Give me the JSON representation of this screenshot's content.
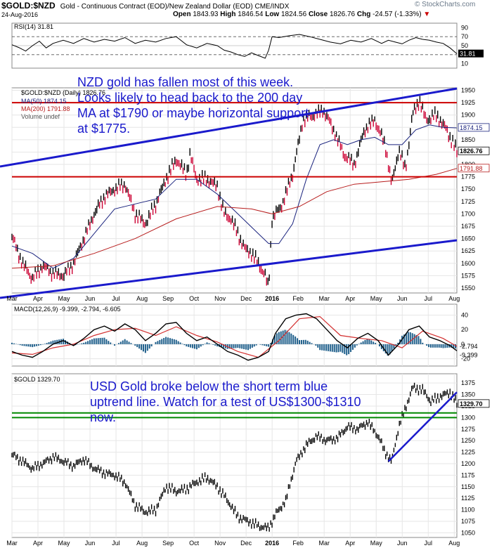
{
  "header": {
    "symbol": "$GOLD:$NZD",
    "description": "Gold - Continuous Contract (EOD)/New Zealand Dollar (EOD) CME/INDX",
    "watermark": "© StockCharts.com",
    "date": "24-Aug-2016",
    "quote": {
      "open_label": "Open",
      "open": "1843.93",
      "high_label": "High",
      "high": "1846.54",
      "low_label": "Low",
      "low": "1824.56",
      "close_label": "Close",
      "close": "1826.76",
      "chg_label": "Chg",
      "chg": "-24.57 (-1.33%)"
    }
  },
  "colors": {
    "annotation": "#1a1acc",
    "price": "#000000",
    "candle_down": "#cc0033",
    "ma50": "#1a237e",
    "ma200": "#b71c1c",
    "macd": "#000000",
    "signal": "#d32f2f",
    "hist": "#1f5f8b",
    "support": "#cc0000",
    "green": "#008800",
    "grid": "#e6e6e6"
  },
  "annotations": {
    "nzd_note": [
      "NZD gold has fallen most of this week.",
      "Looks likely to head back to the 200 day",
      "MA at $1790 or maybe horizontal support",
      "at $1775."
    ],
    "usd_note": [
      "USD Gold broke below the short term blue",
      "uptrend line. Watch for a test of US$1300-$1310",
      "now."
    ]
  },
  "x_axis": {
    "labels": [
      "Mar",
      "Apr",
      "May",
      "Jun",
      "Jul",
      "Aug",
      "Sep",
      "Oct",
      "Nov",
      "Dec",
      "2016",
      "Feb",
      "Mar",
      "Apr",
      "May",
      "Jun",
      "Jul",
      "Aug"
    ]
  },
  "chart_data": [
    {
      "type": "line",
      "name": "rsi_panel",
      "legend": "RSI(14) 31.81",
      "last_label": "31.81",
      "ylim": [
        0,
        100
      ],
      "ticks": [
        10,
        30,
        50,
        70,
        90
      ],
      "levels": [
        30,
        70
      ],
      "points": [
        [
          0,
          52
        ],
        [
          10,
          46
        ],
        [
          20,
          38
        ],
        [
          30,
          50
        ],
        [
          40,
          60
        ],
        [
          50,
          45
        ],
        [
          60,
          55
        ],
        [
          75,
          62
        ],
        [
          90,
          55
        ],
        [
          105,
          66
        ],
        [
          120,
          58
        ],
        [
          135,
          64
        ],
        [
          150,
          60
        ],
        [
          165,
          68
        ],
        [
          180,
          55
        ],
        [
          195,
          62
        ],
        [
          210,
          58
        ],
        [
          225,
          66
        ],
        [
          240,
          70
        ],
        [
          255,
          52
        ],
        [
          270,
          45
        ],
        [
          285,
          55
        ],
        [
          300,
          50
        ],
        [
          310,
          40
        ],
        [
          320,
          36
        ],
        [
          330,
          30
        ],
        [
          340,
          26
        ],
        [
          350,
          34
        ],
        [
          360,
          28
        ],
        [
          370,
          22
        ],
        [
          375,
          40
        ],
        [
          380,
          70
        ],
        [
          390,
          68
        ],
        [
          405,
          72
        ],
        [
          420,
          75
        ],
        [
          435,
          70
        ],
        [
          450,
          64
        ],
        [
          465,
          58
        ],
        [
          480,
          54
        ],
        [
          495,
          62
        ],
        [
          510,
          58
        ],
        [
          525,
          66
        ],
        [
          540,
          55
        ],
        [
          550,
          62
        ],
        [
          560,
          58
        ],
        [
          570,
          54
        ],
        [
          580,
          62
        ],
        [
          590,
          68
        ],
        [
          600,
          64
        ],
        [
          610,
          62
        ],
        [
          620,
          58
        ],
        [
          630,
          55
        ],
        [
          640,
          45
        ],
        [
          650,
          32
        ]
      ]
    },
    {
      "type": "candlestick",
      "name": "nzd_gold_panel",
      "legend": [
        "$GOLD:$NZD (Daily) 1826.76",
        "MA(50) 1874.15",
        "MA(200) 1791.88",
        "Volume undef"
      ],
      "last_labels": [
        "1874.15",
        "1826.76",
        "1791.88"
      ],
      "ylim": [
        1540,
        1955
      ],
      "ticks": [
        1550,
        1575,
        1600,
        1625,
        1650,
        1675,
        1700,
        1725,
        1750,
        1775,
        1800,
        1825,
        1850,
        1875,
        1900,
        1925,
        1950
      ],
      "price_path": [
        [
          0,
          1655
        ],
        [
          15,
          1600
        ],
        [
          30,
          1570
        ],
        [
          45,
          1595
        ],
        [
          60,
          1580
        ],
        [
          75,
          1575
        ],
        [
          90,
          1600
        ],
        [
          105,
          1650
        ],
        [
          120,
          1700
        ],
        [
          135,
          1735
        ],
        [
          150,
          1750
        ],
        [
          165,
          1760
        ],
        [
          180,
          1700
        ],
        [
          195,
          1680
        ],
        [
          210,
          1720
        ],
        [
          225,
          1770
        ],
        [
          240,
          1810
        ],
        [
          255,
          1780
        ],
        [
          260,
          1820
        ],
        [
          270,
          1770
        ],
        [
          285,
          1770
        ],
        [
          300,
          1755
        ],
        [
          310,
          1700
        ],
        [
          320,
          1690
        ],
        [
          330,
          1660
        ],
        [
          340,
          1630
        ],
        [
          350,
          1620
        ],
        [
          360,
          1600
        ],
        [
          370,
          1575
        ],
        [
          375,
          1550
        ],
        [
          380,
          1690
        ],
        [
          395,
          1720
        ],
        [
          410,
          1780
        ],
        [
          425,
          1890
        ],
        [
          440,
          1900
        ],
        [
          455,
          1910
        ],
        [
          470,
          1870
        ],
        [
          485,
          1820
        ],
        [
          500,
          1800
        ],
        [
          515,
          1870
        ],
        [
          530,
          1890
        ],
        [
          545,
          1840
        ],
        [
          555,
          1760
        ],
        [
          565,
          1830
        ],
        [
          575,
          1790
        ],
        [
          585,
          1900
        ],
        [
          595,
          1930
        ],
        [
          605,
          1890
        ],
        [
          620,
          1900
        ],
        [
          635,
          1870
        ],
        [
          650,
          1826
        ]
      ],
      "ma50": [
        [
          0,
          1635
        ],
        [
          30,
          1620
        ],
        [
          60,
          1590
        ],
        [
          90,
          1610
        ],
        [
          120,
          1660
        ],
        [
          150,
          1710
        ],
        [
          180,
          1720
        ],
        [
          210,
          1730
        ],
        [
          240,
          1770
        ],
        [
          270,
          1770
        ],
        [
          300,
          1740
        ],
        [
          330,
          1700
        ],
        [
          360,
          1660
        ],
        [
          375,
          1640
        ],
        [
          390,
          1640
        ],
        [
          410,
          1680
        ],
        [
          430,
          1770
        ],
        [
          450,
          1840
        ],
        [
          470,
          1850
        ],
        [
          490,
          1840
        ],
        [
          510,
          1850
        ],
        [
          530,
          1855
        ],
        [
          550,
          1840
        ],
        [
          570,
          1840
        ],
        [
          590,
          1870
        ],
        [
          610,
          1880
        ],
        [
          630,
          1875
        ],
        [
          650,
          1874
        ]
      ],
      "ma200": [
        [
          0,
          1590
        ],
        [
          60,
          1595
        ],
        [
          120,
          1620
        ],
        [
          180,
          1650
        ],
        [
          240,
          1690
        ],
        [
          300,
          1715
        ],
        [
          350,
          1710
        ],
        [
          380,
          1700
        ],
        [
          420,
          1715
        ],
        [
          460,
          1745
        ],
        [
          500,
          1760
        ],
        [
          540,
          1765
        ],
        [
          580,
          1770
        ],
        [
          620,
          1780
        ],
        [
          650,
          1792
        ]
      ],
      "support_y": 1925,
      "support2_y": 1775,
      "trend_upper": [
        [
          -20,
          1780
        ],
        [
          650,
          1945
        ]
      ],
      "trend_lower": [
        [
          -20,
          1530
        ],
        [
          650,
          1640
        ]
      ]
    },
    {
      "type": "line",
      "name": "macd_panel",
      "legend": "MACD(12,26,9) -9.399, -2.794, -6.605",
      "last_labels": [
        "-2.794",
        "-9.399"
      ],
      "ylim": [
        -30,
        55
      ],
      "ticks": [
        -20,
        0,
        20,
        40
      ],
      "macd": [
        [
          0,
          -10
        ],
        [
          15,
          -15
        ],
        [
          30,
          -18
        ],
        [
          45,
          -10
        ],
        [
          60,
          0
        ],
        [
          75,
          5
        ],
        [
          90,
          -2
        ],
        [
          105,
          8
        ],
        [
          120,
          20
        ],
        [
          135,
          25
        ],
        [
          150,
          18
        ],
        [
          165,
          28
        ],
        [
          180,
          20
        ],
        [
          195,
          5
        ],
        [
          210,
          15
        ],
        [
          225,
          28
        ],
        [
          240,
          30
        ],
        [
          255,
          15
        ],
        [
          270,
          5
        ],
        [
          285,
          10
        ],
        [
          300,
          0
        ],
        [
          315,
          -10
        ],
        [
          330,
          -15
        ],
        [
          345,
          -22
        ],
        [
          360,
          -18
        ],
        [
          375,
          -10
        ],
        [
          385,
          15
        ],
        [
          400,
          35
        ],
        [
          415,
          40
        ],
        [
          430,
          42
        ],
        [
          445,
          35
        ],
        [
          460,
          20
        ],
        [
          475,
          5
        ],
        [
          490,
          -5
        ],
        [
          505,
          8
        ],
        [
          520,
          15
        ],
        [
          535,
          5
        ],
        [
          550,
          -15
        ],
        [
          565,
          0
        ],
        [
          580,
          20
        ],
        [
          595,
          25
        ],
        [
          610,
          10
        ],
        [
          625,
          5
        ],
        [
          640,
          -2
        ],
        [
          650,
          -9
        ]
      ],
      "signal": [
        [
          0,
          -12
        ],
        [
          30,
          -14
        ],
        [
          60,
          -5
        ],
        [
          90,
          0
        ],
        [
          120,
          12
        ],
        [
          150,
          20
        ],
        [
          180,
          22
        ],
        [
          210,
          12
        ],
        [
          240,
          24
        ],
        [
          270,
          12
        ],
        [
          300,
          3
        ],
        [
          330,
          -10
        ],
        [
          360,
          -18
        ],
        [
          390,
          5
        ],
        [
          420,
          35
        ],
        [
          450,
          38
        ],
        [
          480,
          12
        ],
        [
          510,
          8
        ],
        [
          540,
          5
        ],
        [
          570,
          -5
        ],
        [
          600,
          18
        ],
        [
          630,
          8
        ],
        [
          650,
          -3
        ]
      ]
    },
    {
      "type": "line",
      "name": "usd_gold_panel",
      "legend": "$GOLD 1329.70",
      "last_label": "1329.70",
      "ylim": [
        1040,
        1395
      ],
      "ticks": [
        1050,
        1075,
        1100,
        1125,
        1150,
        1175,
        1200,
        1225,
        1250,
        1275,
        1300,
        1325,
        1350,
        1375
      ],
      "price_path": [
        [
          0,
          1220
        ],
        [
          15,
          1205
        ],
        [
          30,
          1190
        ],
        [
          45,
          1200
        ],
        [
          60,
          1215
        ],
        [
          75,
          1205
        ],
        [
          90,
          1195
        ],
        [
          105,
          1210
        ],
        [
          120,
          1190
        ],
        [
          135,
          1180
        ],
        [
          150,
          1175
        ],
        [
          165,
          1160
        ],
        [
          180,
          1110
        ],
        [
          195,
          1095
        ],
        [
          210,
          1100
        ],
        [
          225,
          1150
        ],
        [
          240,
          1140
        ],
        [
          255,
          1145
        ],
        [
          270,
          1160
        ],
        [
          285,
          1170
        ],
        [
          300,
          1150
        ],
        [
          315,
          1120
        ],
        [
          330,
          1085
        ],
        [
          345,
          1075
        ],
        [
          360,
          1065
        ],
        [
          375,
          1060
        ],
        [
          385,
          1090
        ],
        [
          400,
          1120
        ],
        [
          415,
          1205
        ],
        [
          430,
          1240
        ],
        [
          445,
          1260
        ],
        [
          460,
          1250
        ],
        [
          475,
          1255
        ],
        [
          490,
          1280
        ],
        [
          505,
          1275
        ],
        [
          520,
          1290
        ],
        [
          535,
          1260
        ],
        [
          545,
          1225
        ],
        [
          555,
          1205
        ],
        [
          565,
          1280
        ],
        [
          575,
          1320
        ],
        [
          585,
          1365
        ],
        [
          600,
          1360
        ],
        [
          612,
          1335
        ],
        [
          625,
          1345
        ],
        [
          640,
          1355
        ],
        [
          650,
          1330
        ]
      ],
      "lines": {
        "green_upper": 1310,
        "green_lower": 1300
      },
      "uptrend": [
        [
          550,
          1205
        ],
        [
          650,
          1355
        ]
      ]
    }
  ]
}
